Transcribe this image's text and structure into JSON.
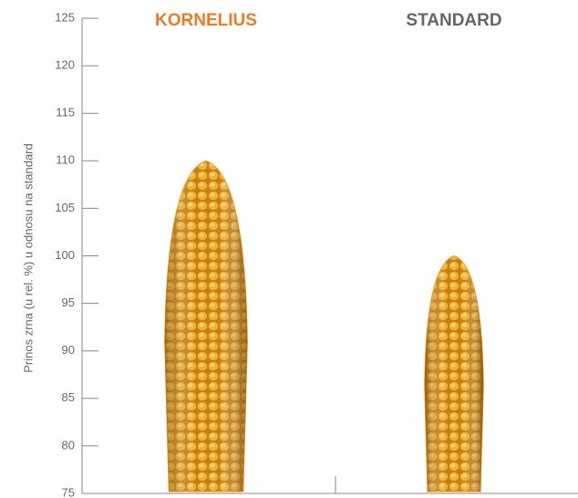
{
  "chart_data": {
    "type": "bar",
    "y_label": "Prinos zrna (u rel. %) u odnosu na standard",
    "categories": [
      "KORNELIUS",
      "STANDARD"
    ],
    "category_colors": [
      "#f07a22",
      "#666666"
    ],
    "values": [
      110,
      100
    ],
    "color": "#e8a21c",
    "ylim": [
      75,
      125
    ],
    "yticks": [
      75,
      80,
      85,
      90,
      95,
      100,
      105,
      110,
      115,
      120,
      125
    ]
  }
}
